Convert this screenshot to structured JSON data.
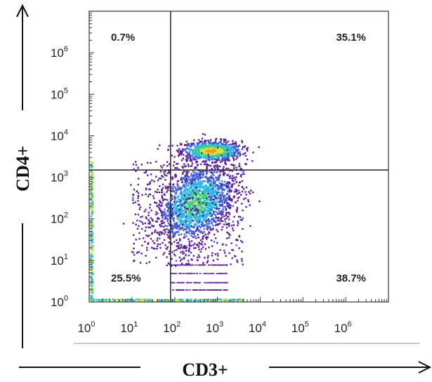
{
  "chart_data": {
    "type": "scatter",
    "plot_kind": "flow cytometry density dot plot",
    "title": "",
    "xlabel": "CD3+",
    "ylabel": "CD4+",
    "x_scale": "log",
    "y_scale": "log",
    "xlim": [
      1,
      10000000
    ],
    "ylim": [
      1,
      10000000
    ],
    "x_ticks": [
      {
        "base": "10",
        "exp": "0",
        "value": 1
      },
      {
        "base": "10",
        "exp": "1",
        "value": 10
      },
      {
        "base": "10",
        "exp": "2",
        "value": 100
      },
      {
        "base": "10",
        "exp": "3",
        "value": 1000
      },
      {
        "base": "10",
        "exp": "4",
        "value": 10000
      },
      {
        "base": "10",
        "exp": "5",
        "value": 100000
      },
      {
        "base": "10",
        "exp": "6",
        "value": 1000000
      }
    ],
    "y_ticks": [
      {
        "base": "10",
        "exp": "0",
        "value": 1
      },
      {
        "base": "10",
        "exp": "1",
        "value": 10
      },
      {
        "base": "10",
        "exp": "2",
        "value": 100
      },
      {
        "base": "10",
        "exp": "3",
        "value": 1000
      },
      {
        "base": "10",
        "exp": "4",
        "value": 10000
      },
      {
        "base": "10",
        "exp": "5",
        "value": 100000
      },
      {
        "base": "10",
        "exp": "6",
        "value": 1000000
      }
    ],
    "gate": {
      "x": 80,
      "y": 1500
    },
    "quadrants": [
      {
        "position": "top-left",
        "label": "0.7%",
        "value": 0.7
      },
      {
        "position": "top-right",
        "label": "35.1%",
        "value": 35.1
      },
      {
        "position": "bottom-left",
        "label": "25.5%",
        "value": 25.5
      },
      {
        "position": "bottom-right",
        "label": "38.7%",
        "value": 38.7
      }
    ],
    "populations": [
      {
        "name_hidden": true,
        "center": [
          700,
          4500
        ],
        "spread": [
          0.35,
          0.12
        ],
        "density": "high"
      },
      {
        "name_hidden": true,
        "center": [
          300,
          250
        ],
        "spread": [
          0.45,
          0.45
        ],
        "density": "high"
      }
    ],
    "colormap": [
      "#5a1f9a",
      "#3e5fd8",
      "#2db6e6",
      "#3fcf8a",
      "#d8e23a",
      "#f59a1e",
      "#e8341a"
    ],
    "frame_color": "#333333",
    "gate_color": "#222222",
    "grid": false
  }
}
